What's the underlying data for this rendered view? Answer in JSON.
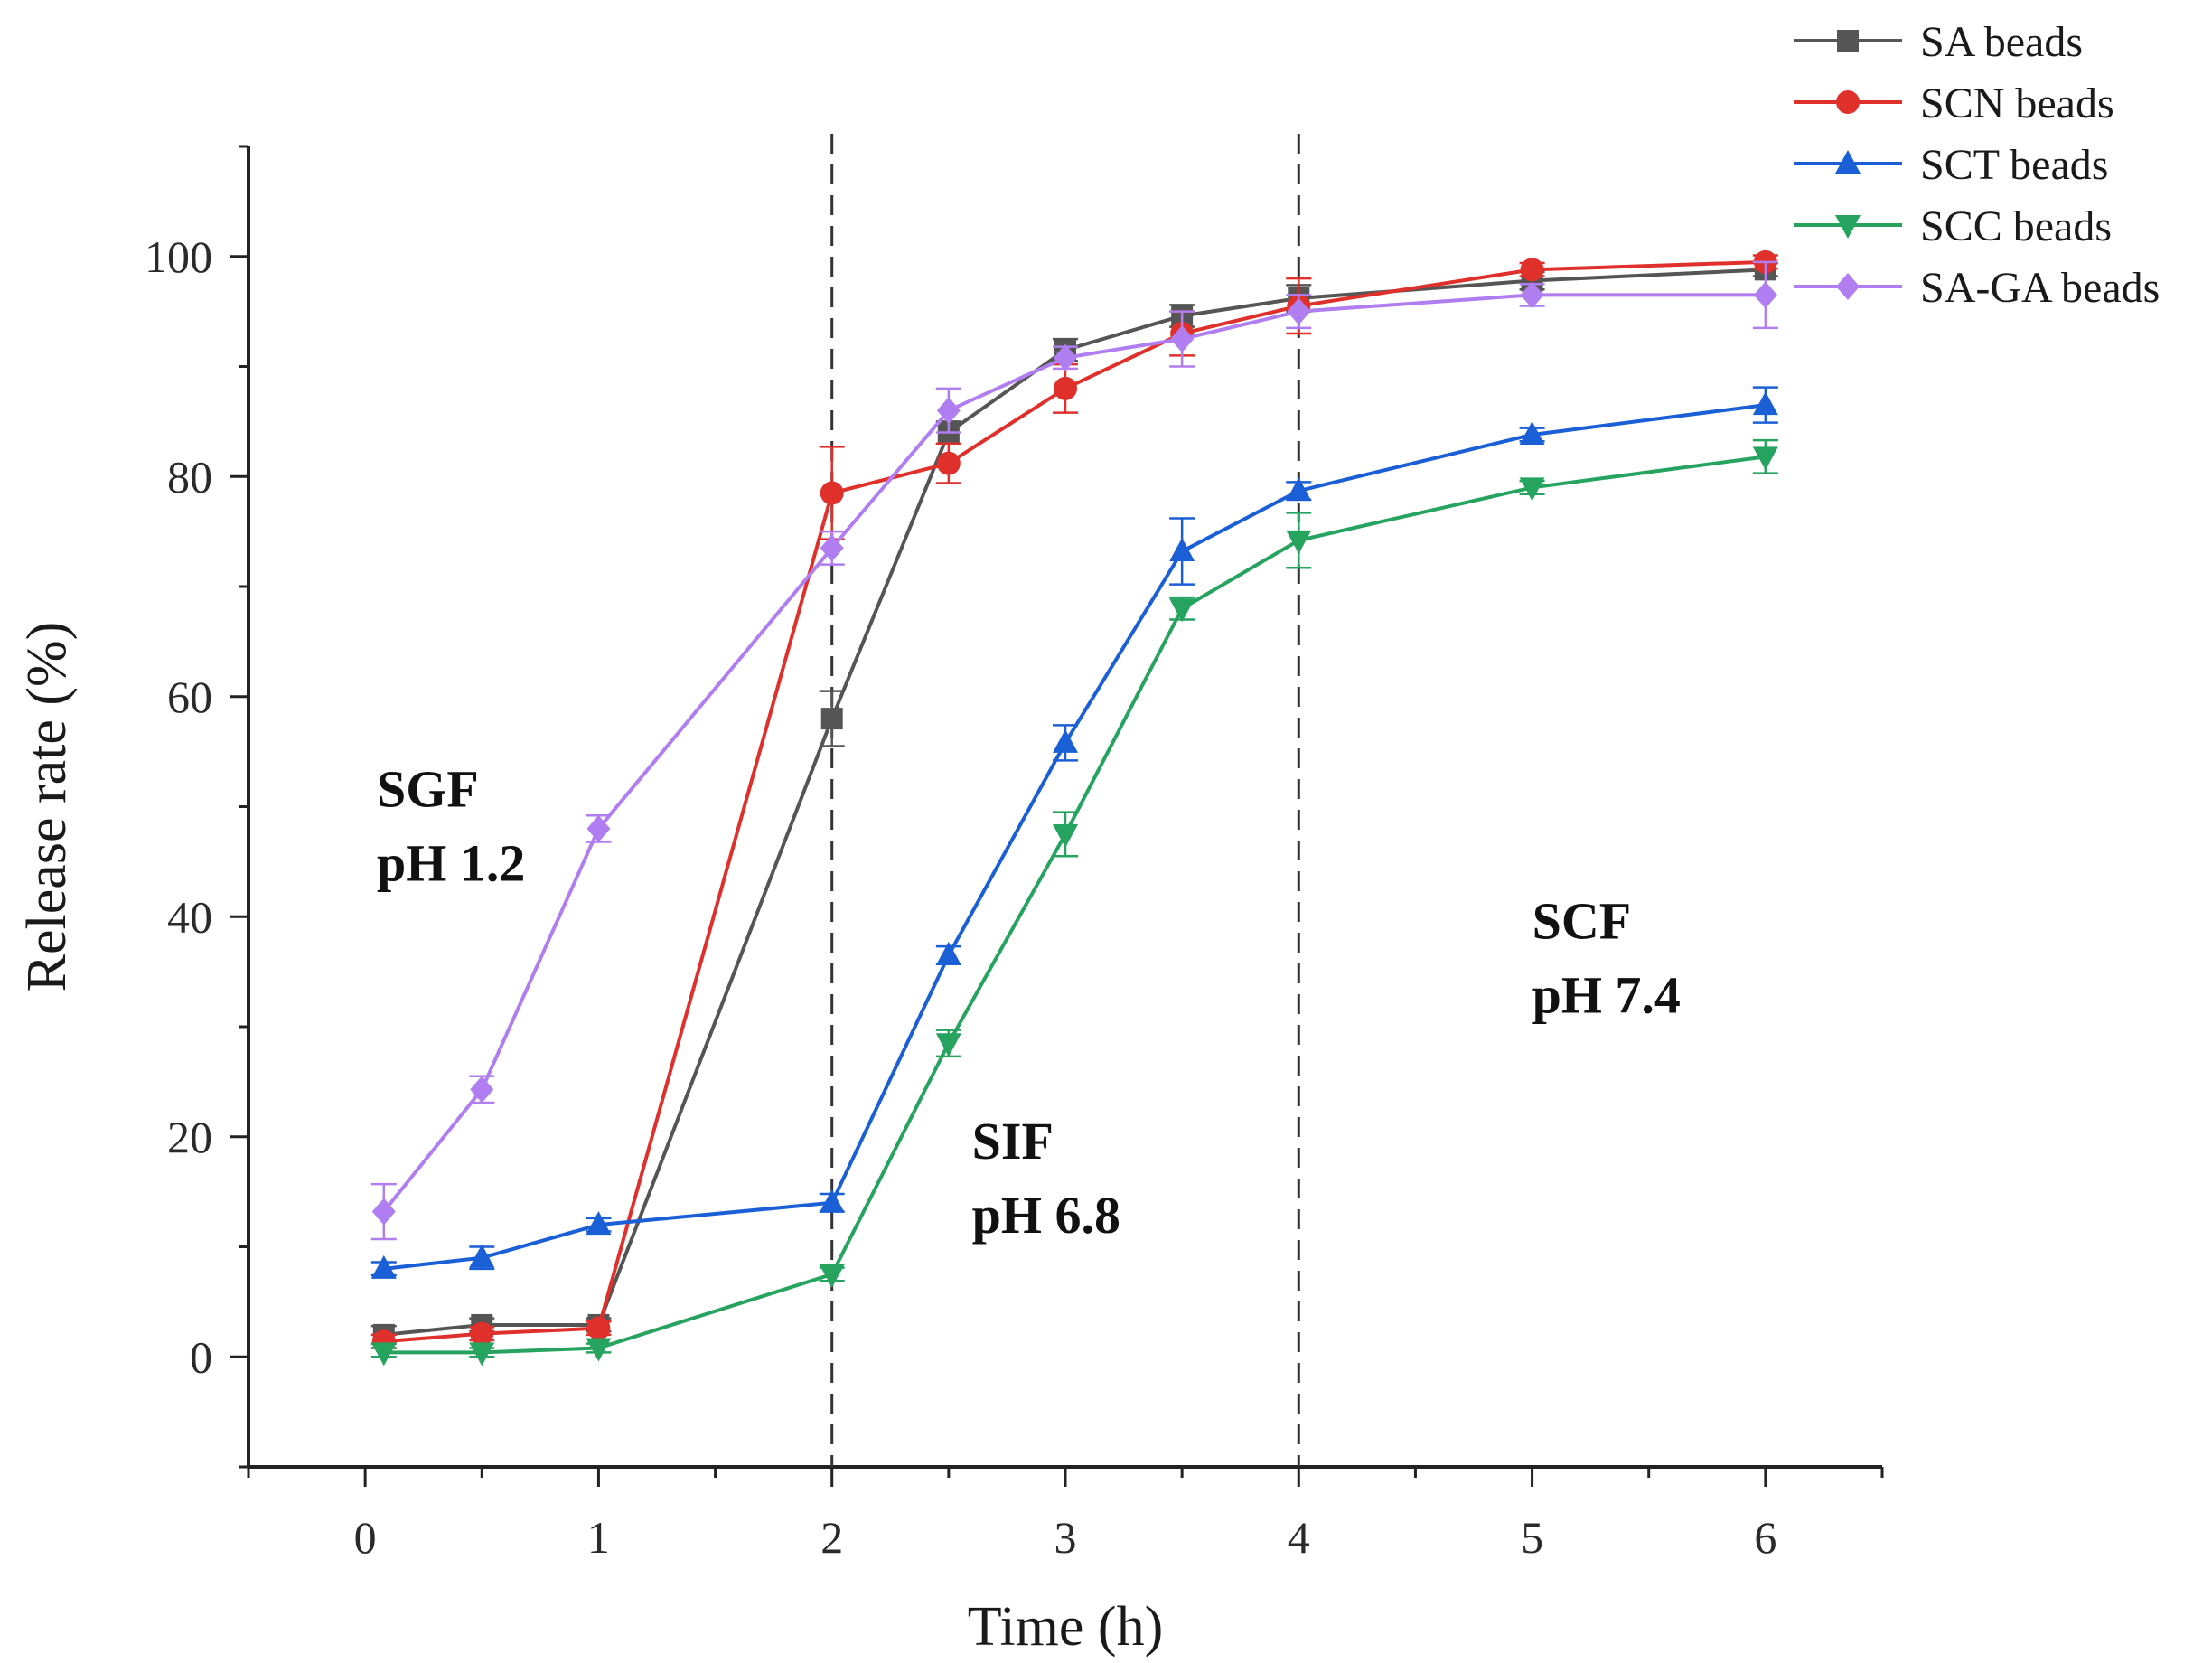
{
  "chart_data": {
    "type": "line",
    "xlabel": "Time (h)",
    "ylabel": "Release rate (%)",
    "xlim": [
      -0.5,
      6.5
    ],
    "ylim": [
      -10,
      110
    ],
    "xticks": [
      0,
      1,
      2,
      3,
      4,
      5,
      6
    ],
    "yticks": [
      0,
      20,
      40,
      60,
      80,
      100
    ],
    "grid": false,
    "legend_position": "top-right",
    "vertical_lines": [
      2,
      4
    ],
    "annotations": [
      {
        "lines": [
          "SGF",
          "pH 1.2"
        ],
        "x": 0.05,
        "y": 50
      },
      {
        "lines": [
          "SIF",
          "pH 6.8"
        ],
        "x": 2.6,
        "y": 18
      },
      {
        "lines": [
          "SCF",
          "pH 7.4"
        ],
        "x": 5.0,
        "y": 38
      }
    ],
    "x": [
      0.08,
      0.5,
      1,
      2,
      2.5,
      3,
      3.5,
      4,
      5,
      6
    ],
    "series": [
      {
        "name": "SA beads",
        "color": "#555555",
        "marker": "square",
        "values": [
          2.0,
          2.9,
          2.9,
          58.0,
          84.0,
          91.5,
          94.6,
          96.2,
          97.8,
          98.8
        ],
        "errors": [
          0.8,
          0.6,
          0.6,
          2.5,
          1.0,
          1.0,
          1.0,
          1.2,
          0.8,
          0.6
        ]
      },
      {
        "name": "SCN beads",
        "color": "#e0302c",
        "marker": "circle",
        "values": [
          1.4,
          2.1,
          2.6,
          78.5,
          81.2,
          88.0,
          93.0,
          95.5,
          98.8,
          99.5
        ],
        "errors": [
          0.6,
          0.6,
          0.6,
          4.2,
          1.8,
          2.2,
          2.0,
          2.5,
          0.6,
          0.6
        ]
      },
      {
        "name": "SCT beads",
        "color": "#1a5fd6",
        "marker": "triangle-up",
        "values": [
          8.0,
          9.0,
          12.0,
          14.0,
          36.5,
          55.8,
          73.2,
          78.7,
          83.8,
          86.5
        ],
        "errors": [
          0.6,
          1.0,
          0.6,
          0.8,
          0.8,
          1.6,
          3.0,
          0.8,
          0.6,
          1.6
        ]
      },
      {
        "name": "SCC beads",
        "color": "#27a360",
        "marker": "triangle-down",
        "values": [
          0.4,
          0.4,
          0.8,
          7.5,
          28.5,
          47.5,
          68.0,
          74.2,
          79.0,
          81.8
        ],
        "errors": [
          0.4,
          0.4,
          0.4,
          0.6,
          1.2,
          2.0,
          1.0,
          2.5,
          0.6,
          1.5
        ]
      },
      {
        "name": "SA-GA beads",
        "color": "#b07ef0",
        "marker": "diamond",
        "values": [
          13.2,
          24.3,
          48.0,
          73.5,
          86.0,
          90.8,
          92.5,
          95.0,
          96.5,
          96.5
        ],
        "errors": [
          2.5,
          1.2,
          1.2,
          1.5,
          2.0,
          1.0,
          2.5,
          1.5,
          1.0,
          3.0
        ]
      }
    ]
  }
}
